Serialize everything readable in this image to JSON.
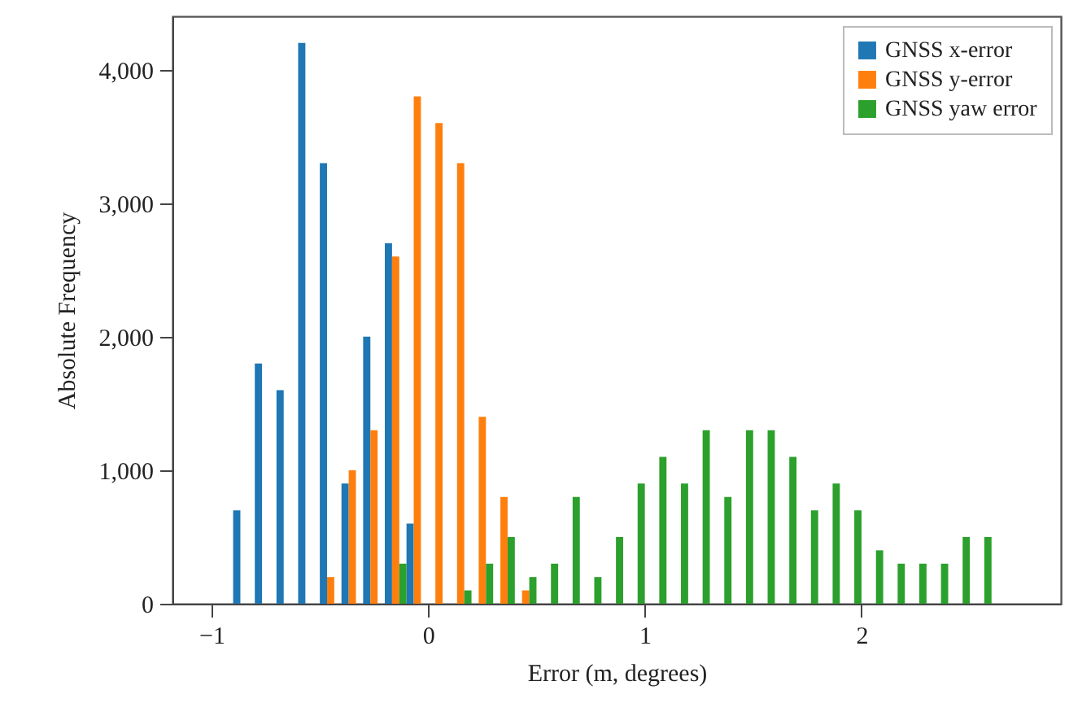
{
  "chart_data": {
    "type": "histogram",
    "xlabel": "Error (m, degrees)",
    "ylabel": "Absolute Frequency",
    "bins": [
      -1.0,
      -0.9,
      -0.8,
      -0.7,
      -0.6,
      -0.5,
      -0.4,
      -0.3,
      -0.2,
      -0.1,
      0.0,
      0.1,
      0.2,
      0.3,
      0.4,
      0.5,
      0.6,
      0.7,
      0.8,
      0.9,
      1.0,
      1.1,
      1.2,
      1.3,
      1.4,
      1.5,
      1.6,
      1.7,
      1.8,
      1.9,
      2.0,
      2.1,
      2.2,
      2.3,
      2.4,
      2.5,
      2.6,
      2.7,
      2.8
    ],
    "series": [
      {
        "name": "GNSS x-error",
        "color": "#1f77b4",
        "values": [
          0,
          700,
          1800,
          1600,
          4200,
          3300,
          900,
          2000,
          2700,
          600,
          0,
          0,
          0,
          0,
          0,
          0,
          0,
          0,
          0,
          0,
          0,
          0,
          0,
          0,
          0,
          0,
          0,
          0,
          0,
          0,
          0,
          0,
          0,
          0,
          0,
          0,
          0,
          0
        ]
      },
      {
        "name": "GNSS y-error",
        "color": "#ff7f0e",
        "values": [
          0,
          0,
          0,
          0,
          0,
          200,
          1000,
          1300,
          2600,
          3800,
          3600,
          3300,
          1400,
          800,
          100,
          0,
          0,
          0,
          0,
          0,
          0,
          0,
          0,
          0,
          0,
          0,
          0,
          0,
          0,
          0,
          0,
          0,
          0,
          0,
          0,
          0,
          0,
          0
        ]
      },
      {
        "name": "GNSS yaw error",
        "color": "#2ca02c",
        "values": [
          0,
          0,
          0,
          0,
          0,
          0,
          0,
          0,
          300,
          0,
          0,
          100,
          300,
          500,
          200,
          300,
          800,
          200,
          500,
          900,
          1100,
          900,
          1300,
          800,
          1300,
          1300,
          1100,
          700,
          900,
          700,
          400,
          300,
          300,
          300,
          500,
          500,
          0,
          0
        ]
      }
    ],
    "xlim": [
      -1.18,
      2.92
    ],
    "xticks": [
      {
        "value": -1,
        "label": "−1"
      },
      0,
      1,
      2
    ],
    "ylim": [
      0,
      4400
    ],
    "yticks": [
      0,
      {
        "value": 1000,
        "label": "1,000"
      },
      {
        "value": 2000,
        "label": "2,000"
      },
      {
        "value": 3000,
        "label": "3,000"
      },
      {
        "value": 4000,
        "label": "4,000"
      }
    ],
    "legend": "top right",
    "grid": false
  }
}
